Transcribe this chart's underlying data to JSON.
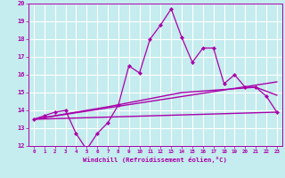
{
  "xlabel": "Windchill (Refroidissement éolien,°C)",
  "xlim": [
    -0.5,
    23.5
  ],
  "ylim": [
    12,
    20
  ],
  "yticks": [
    12,
    13,
    14,
    15,
    16,
    17,
    18,
    19,
    20
  ],
  "xticks": [
    0,
    1,
    2,
    3,
    4,
    5,
    6,
    7,
    8,
    9,
    10,
    11,
    12,
    13,
    14,
    15,
    16,
    17,
    18,
    19,
    20,
    21,
    22,
    23
  ],
  "background_color": "#c5ecee",
  "line_color": "#aa00aa",
  "grid_color": "#ffffff",
  "main_line": {
    "x": [
      0,
      1,
      2,
      3,
      4,
      5,
      6,
      7,
      8,
      9,
      10,
      11,
      12,
      13,
      14,
      15,
      16,
      17,
      18,
      19,
      20,
      21,
      22,
      23
    ],
    "y": [
      13.5,
      13.7,
      13.9,
      14.0,
      12.7,
      11.8,
      12.7,
      13.3,
      14.3,
      16.5,
      16.1,
      18.0,
      18.8,
      19.7,
      18.1,
      16.7,
      17.5,
      17.5,
      15.5,
      16.0,
      15.3,
      15.3,
      14.8,
      13.9
    ]
  },
  "reg_line1": {
    "x": [
      0,
      23
    ],
    "y": [
      13.5,
      15.6
    ]
  },
  "reg_line2": {
    "x": [
      0,
      7,
      14,
      21,
      23
    ],
    "y": [
      13.5,
      14.2,
      15.0,
      15.3,
      14.85
    ]
  },
  "reg_line3": {
    "x": [
      0,
      23
    ],
    "y": [
      13.5,
      13.9
    ]
  }
}
